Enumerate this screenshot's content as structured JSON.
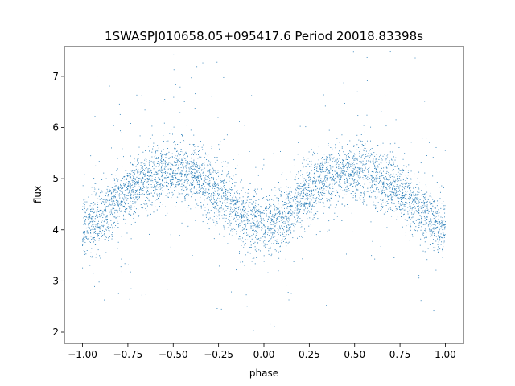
{
  "chart_data": {
    "type": "scatter",
    "title": "1SWASPJ010658.05+095417.6 Period 20018.83398s",
    "xlabel": "phase",
    "ylabel": "flux",
    "xlim": [
      -1.1,
      1.1
    ],
    "ylim": [
      1.78,
      7.58
    ],
    "xticks": [
      -1.0,
      -0.75,
      -0.5,
      -0.25,
      0.0,
      0.25,
      0.5,
      0.75,
      1.0
    ],
    "xtick_labels": [
      "−1.00",
      "−0.75",
      "−0.50",
      "−0.25",
      "0.00",
      "0.25",
      "0.50",
      "0.75",
      "1.00"
    ],
    "yticks": [
      2,
      3,
      4,
      5,
      6,
      7
    ],
    "ytick_labels": [
      "2",
      "3",
      "4",
      "5",
      "6",
      "7"
    ],
    "grid": false,
    "legend": "none",
    "marker_color": "#1f77b4",
    "phase_range": [
      -1.0,
      1.0
    ],
    "light_curve": {
      "phase": [
        -1.0,
        -0.875,
        -0.75,
        -0.625,
        -0.5,
        -0.375,
        -0.25,
        -0.125,
        0.0,
        0.125,
        0.25,
        0.375,
        0.5,
        0.625,
        0.75,
        0.875,
        1.0
      ],
      "flux": [
        4.05,
        4.3,
        4.75,
        5.05,
        5.15,
        5.05,
        4.75,
        4.3,
        4.05,
        4.3,
        4.75,
        5.05,
        5.15,
        5.05,
        4.75,
        4.3,
        4.05
      ]
    },
    "scatter_band_flux": 0.3
  }
}
